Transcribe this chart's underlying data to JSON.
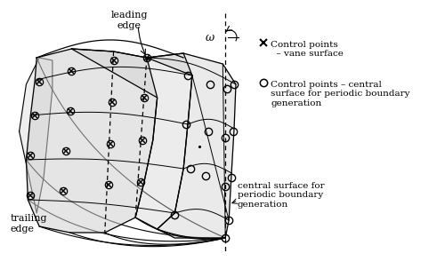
{
  "figsize": [
    5.0,
    3.03
  ],
  "dpi": 100,
  "legend_text1": "Control points\n  – vane surface",
  "legend_text2": "Control points – central\nsurface for periodic boundary\ngeneration",
  "label_leading_edge": "leading\nedge",
  "label_trailing_edge": "trailing\nedge",
  "label_central_surface": "central surface for\nperiodic boundary\ngeneration",
  "label_omega": "ω",
  "surface_color": "#d0d0d0",
  "surface_alpha": 0.55
}
